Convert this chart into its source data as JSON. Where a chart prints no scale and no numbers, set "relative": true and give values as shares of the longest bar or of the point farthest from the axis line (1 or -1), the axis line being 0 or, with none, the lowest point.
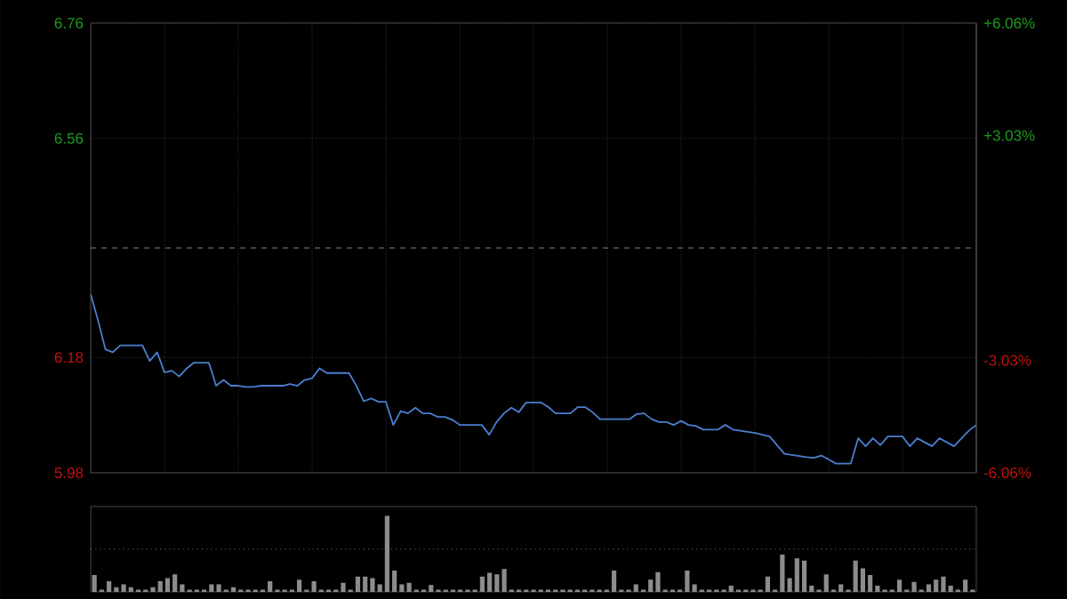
{
  "chart_data": [
    {
      "type": "line",
      "color": "#4a7fd0",
      "categories": [
        null,
        null,
        null,
        null,
        null,
        null,
        null,
        null,
        null,
        null,
        null,
        null,
        null,
        null,
        null,
        null,
        null,
        null,
        null,
        null,
        null,
        null,
        null,
        null,
        null,
        null,
        null,
        null,
        null,
        null,
        null,
        null,
        null,
        null,
        null,
        null,
        null,
        null,
        null,
        null,
        null,
        null,
        null,
        null,
        null,
        null,
        null,
        null,
        null,
        null,
        null,
        null,
        null,
        null,
        null,
        null,
        null,
        null,
        null,
        null,
        null,
        null,
        null,
        null,
        null,
        null,
        null,
        null,
        null,
        null,
        null,
        null,
        null,
        null,
        null,
        null,
        null,
        null,
        null,
        null,
        null,
        null,
        null,
        null,
        null,
        null,
        null,
        null,
        null,
        null,
        null,
        null,
        null,
        null,
        null,
        null,
        null,
        null,
        null,
        null,
        null,
        null,
        null,
        null,
        null,
        null,
        null,
        null,
        null,
        null,
        null,
        null,
        null,
        null,
        null,
        null,
        null,
        null,
        null,
        null,
        null
      ],
      "values": [
        6.29,
        6.244,
        6.194,
        6.189,
        6.201,
        6.201,
        6.201,
        6.201,
        6.174,
        6.189,
        6.154,
        6.157,
        6.147,
        6.161,
        6.171,
        6.171,
        6.171,
        6.131,
        6.141,
        6.131,
        6.131,
        6.129,
        6.129,
        6.131,
        6.131,
        6.131,
        6.131,
        6.134,
        6.131,
        6.141,
        6.144,
        6.161,
        6.153,
        6.153,
        6.153,
        6.153,
        6.131,
        6.104,
        6.109,
        6.103,
        6.103,
        6.063,
        6.087,
        6.083,
        6.093,
        6.083,
        6.083,
        6.077,
        6.077,
        6.072,
        6.063,
        6.063,
        6.063,
        6.063,
        6.046,
        6.068,
        6.083,
        6.093,
        6.085,
        6.102,
        6.102,
        6.102,
        6.094,
        6.083,
        6.083,
        6.083,
        6.094,
        6.094,
        6.085,
        6.073,
        6.073,
        6.073,
        6.073,
        6.073,
        6.082,
        6.083,
        6.073,
        6.068,
        6.068,
        6.063,
        6.07,
        6.063,
        6.061,
        6.055,
        6.055,
        6.055,
        6.063,
        6.055,
        6.053,
        6.051,
        6.049,
        6.046,
        6.043,
        6.028,
        6.013,
        6.011,
        6.009,
        6.007,
        6.006,
        6.01,
        6.003,
        5.996,
        5.996,
        5.996,
        6.04,
        6.026,
        6.04,
        6.028,
        6.043,
        6.043,
        6.043,
        6.026,
        6.04,
        6.033,
        6.026,
        6.04,
        6.033,
        6.026,
        6.04,
        6.053,
        6.063
      ],
      "ylim": [
        5.98,
        6.76
      ],
      "yticks": [
        5.98,
        6.18,
        6.56,
        6.76
      ],
      "y2lim": [
        -6.06,
        6.06
      ],
      "y2ticks": [
        {
          "value": -6.06,
          "label": "-6.06%"
        },
        {
          "value": -3.03,
          "label": "-3.03%"
        },
        {
          "value": 3.03,
          "label": "+3.03%"
        },
        {
          "value": 6.06,
          "label": "+6.06%"
        }
      ],
      "ref_lines": [
        {
          "axis": "y",
          "value": 6.37,
          "color": "#888888",
          "line_style": "dashed"
        }
      ],
      "grid": true,
      "tick_labels": "y"
    },
    {
      "type": "bar",
      "relative": true,
      "color": "#8c8c8c",
      "categories": [
        null,
        null,
        null,
        null,
        null,
        null,
        null,
        null,
        null,
        null,
        null,
        null,
        null,
        null,
        null,
        null,
        null,
        null,
        null,
        null,
        null,
        null,
        null,
        null,
        null,
        null,
        null,
        null,
        null,
        null,
        null,
        null,
        null,
        null,
        null,
        null,
        null,
        null,
        null,
        null,
        null,
        null,
        null,
        null,
        null,
        null,
        null,
        null,
        null,
        null,
        null,
        null,
        null,
        null,
        null,
        null,
        null,
        null,
        null,
        null,
        null,
        null,
        null,
        null,
        null,
        null,
        null,
        null,
        null,
        null,
        null,
        null,
        null,
        null,
        null,
        null,
        null,
        null,
        null,
        null,
        null,
        null,
        null,
        null,
        null,
        null,
        null,
        null,
        null,
        null,
        null,
        null,
        null,
        null,
        null,
        null,
        null,
        null,
        null,
        null,
        null,
        null,
        null,
        null,
        null,
        null,
        null,
        null,
        null,
        null,
        null,
        null,
        null,
        null,
        null,
        null,
        null,
        null,
        null,
        null,
        null
      ],
      "values": [
        0.22,
        0.03,
        0.14,
        0.06,
        0.1,
        0.06,
        0.03,
        0.03,
        0.06,
        0.14,
        0.18,
        0.23,
        0.1,
        0.03,
        0.03,
        0.03,
        0.1,
        0.1,
        0.03,
        0.06,
        0.03,
        0.03,
        0.03,
        0.03,
        0.14,
        0.03,
        0.03,
        0.03,
        0.16,
        0.03,
        0.14,
        0.03,
        0.03,
        0.03,
        0.12,
        0.03,
        0.2,
        0.2,
        0.18,
        0.1,
        1,
        0.28,
        0.1,
        0.12,
        0.03,
        0.03,
        0.09,
        0.03,
        0.03,
        0.03,
        0.03,
        0.03,
        0.03,
        0.2,
        0.25,
        0.23,
        0.3,
        0.03,
        0.03,
        0.03,
        0.03,
        0.03,
        0.03,
        0.03,
        0.03,
        0.03,
        0.03,
        0.03,
        0.03,
        0.03,
        0.03,
        0.28,
        0.03,
        0.03,
        0.1,
        0.03,
        0.16,
        0.26,
        0.03,
        0.03,
        0.03,
        0.28,
        0.1,
        0.03,
        0.03,
        0.03,
        0.03,
        0.08,
        0.03,
        0.03,
        0.03,
        0.03,
        0.2,
        0.03,
        0.49,
        0.18,
        0.44,
        0.41,
        0.08,
        0.03,
        0.23,
        0.03,
        0.1,
        0.03,
        0.41,
        0.31,
        0.22,
        0.08,
        0.03,
        0.03,
        0.16,
        0.03,
        0.13,
        0.03,
        0.1,
        0.16,
        0.2,
        0.08,
        0.03,
        0.16,
        0.03
      ],
      "ref_lines": [
        {
          "axis": "y",
          "value": 0.56,
          "color": "#555555",
          "line_style": "dotted"
        }
      ],
      "tick_labels": false
    }
  ]
}
